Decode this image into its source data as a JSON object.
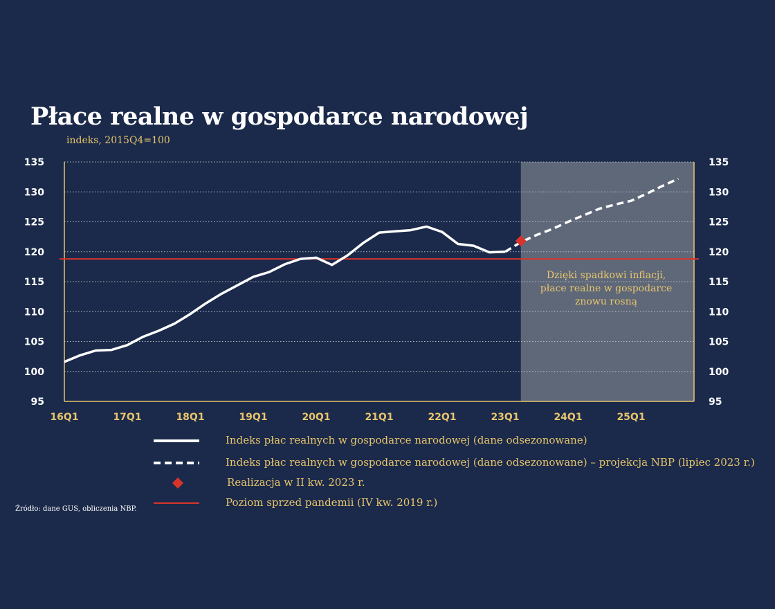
{
  "title": "Płace realne w gospodarce narodowej",
  "subtitle": "indeks, 2015Q4=100",
  "source": "Źródło: dane GUS, obliczenia NBP.",
  "colors": {
    "background": "#1b2a4a",
    "actual_line": "#ffffff",
    "projection_line": "#ffffff",
    "marker": "#d9342b",
    "prepandemic_line": "#d9342b",
    "shade": "#5e6878",
    "text": "#e8c56d",
    "grid": "#b8bdc7"
  },
  "chart_data": {
    "type": "line",
    "x_ticks": [
      "16Q1",
      "17Q1",
      "18Q1",
      "19Q1",
      "20Q1",
      "21Q1",
      "22Q1",
      "23Q1",
      "24Q1",
      "25Q1"
    ],
    "y_ticks": [
      95,
      100,
      105,
      110,
      115,
      120,
      125,
      130,
      135
    ],
    "ylim": [
      95,
      135
    ],
    "xlim": [
      "2016Q1",
      "2025Q4"
    ],
    "grid": true,
    "projection_shade_from": "2023Q2",
    "annotation": "Dzięki spadkowi inflacji, płace realne w gospodarce znowu rosną",
    "series": [
      {
        "name": "Indeks płac realnych w gospodarce narodowej (dane odsezonowane)",
        "style": "solid",
        "x": [
          "2016Q1",
          "2016Q2",
          "2016Q3",
          "2016Q4",
          "2017Q1",
          "2017Q2",
          "2017Q3",
          "2017Q4",
          "2018Q1",
          "2018Q2",
          "2018Q3",
          "2018Q4",
          "2019Q1",
          "2019Q2",
          "2019Q3",
          "2019Q4",
          "2020Q1",
          "2020Q2",
          "2020Q3",
          "2020Q4",
          "2021Q1",
          "2021Q2",
          "2021Q3",
          "2021Q4",
          "2022Q1",
          "2022Q2",
          "2022Q3",
          "2022Q4",
          "2023Q1"
        ],
        "values": [
          101.6,
          102.7,
          103.5,
          103.6,
          104.4,
          105.8,
          106.8,
          108.0,
          109.6,
          111.4,
          113.0,
          114.4,
          115.8,
          116.6,
          117.9,
          118.8,
          119.0,
          117.8,
          119.4,
          121.5,
          123.2,
          123.4,
          123.6,
          124.2,
          123.3,
          121.3,
          121.0,
          119.9,
          120.0
        ]
      },
      {
        "name": "Indeks płac realnych w gospodarce narodowej (dane odsezonowane) – projekcja NBP (lipiec 2023 r.)",
        "style": "dashed",
        "x": [
          "2023Q1",
          "2023Q2",
          "2023Q3",
          "2023Q4",
          "2024Q1",
          "2024Q2",
          "2024Q3",
          "2024Q4",
          "2025Q1",
          "2025Q2",
          "2025Q3",
          "2025Q4"
        ],
        "values": [
          120.0,
          121.6,
          122.8,
          123.8,
          125.0,
          126.1,
          127.2,
          127.9,
          128.5,
          129.7,
          131.0,
          132.2
        ]
      },
      {
        "name": "Realizacja w II kw. 2023 r.",
        "style": "marker",
        "x": [
          "2023Q2"
        ],
        "values": [
          121.8
        ]
      },
      {
        "name": "Poziom sprzed pandemii (IV kw. 2019 r.)",
        "style": "hline",
        "value": 118.8
      }
    ]
  }
}
